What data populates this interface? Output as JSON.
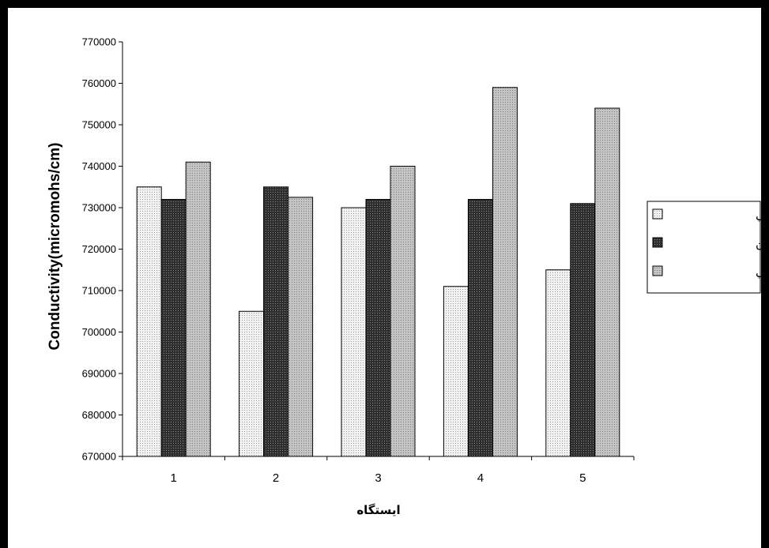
{
  "chart_data": {
    "type": "bar",
    "categories": [
      "1",
      "2",
      "3",
      "4",
      "5"
    ],
    "series": [
      {
        "name": "جنوب شرقي",
        "values": [
          735000,
          705000,
          730000,
          711000,
          715000
        ]
      },
      {
        "name": "ميانگين",
        "values": [
          732000,
          735000,
          732000,
          732000,
          731000
        ]
      },
      {
        "name": "شمال غربي",
        "values": [
          741000,
          732500,
          740000,
          759000,
          754000
        ]
      }
    ],
    "title": "",
    "xlabel": "ايستگاه",
    "ylabel": "Conductivity(micromohs/cm)",
    "ylim": [
      670000,
      770000
    ],
    "yticks": [
      670000,
      680000,
      690000,
      700000,
      710000,
      720000,
      730000,
      740000,
      750000,
      760000,
      770000
    ],
    "grid": false,
    "legend": "right",
    "colors": {
      "series_1": "#e6e6e6",
      "series_2": "#3c3c3c",
      "series_3": "#b4b4b4",
      "frame": "#000000"
    }
  }
}
